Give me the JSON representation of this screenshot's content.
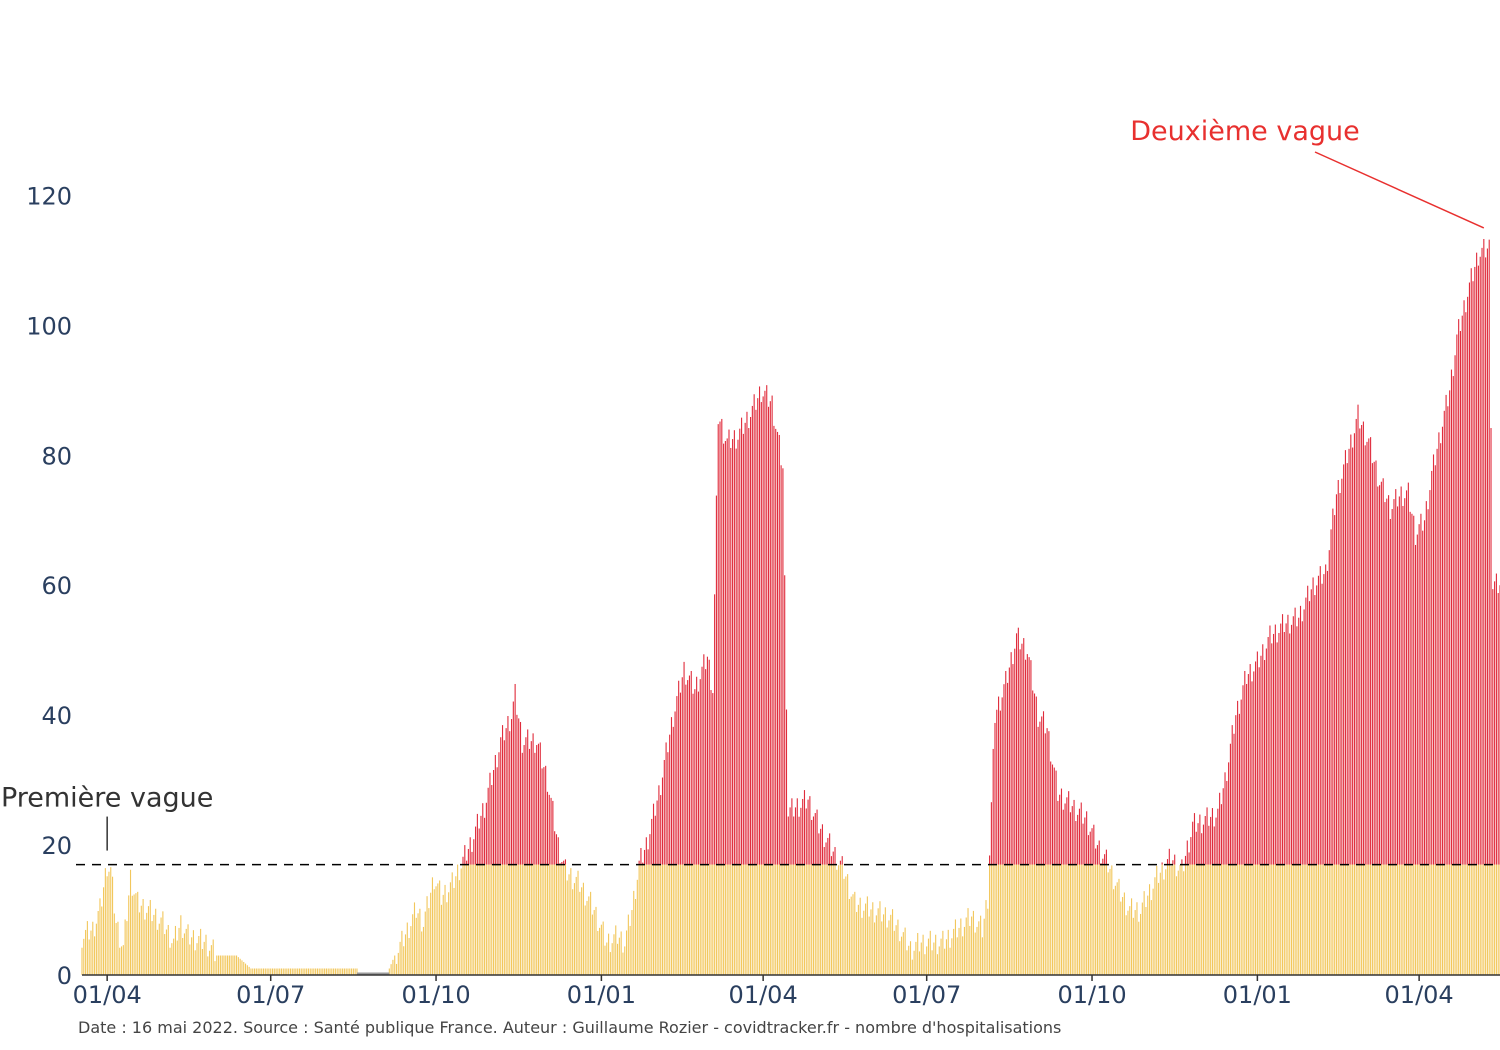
{
  "chart_data": {
    "type": "bar",
    "stacked": true,
    "y_ticks": [
      0,
      20,
      40,
      60,
      80,
      100,
      120
    ],
    "ylim": [
      0,
      127
    ],
    "x_tick_labels": [
      "01/04",
      "01/07",
      "01/10",
      "01/01",
      "01/04",
      "01/07",
      "01/10",
      "01/01",
      "01/04"
    ],
    "x_tick_dates": [
      "2020-04-01",
      "2020-07-01",
      "2020-10-01",
      "2021-01-01",
      "2021-04-01",
      "2021-07-01",
      "2021-10-01",
      "2022-01-01",
      "2022-04-01"
    ],
    "x_range": [
      "2020-03-18",
      "2022-05-16"
    ],
    "threshold": 17,
    "threshold_style": "dashed",
    "colors": {
      "below": "#f2c75c",
      "above": "#e02c3c",
      "threshold": "#000000",
      "axis": "#333333",
      "gap": "#999999"
    },
    "gap_period": [
      "2020-08-18",
      "2020-09-05"
    ],
    "series_keyframes": [
      [
        "2020-03-18",
        6
      ],
      [
        "2020-03-24",
        7
      ],
      [
        "2020-03-28",
        10
      ],
      [
        "2020-04-01",
        17
      ],
      [
        "2020-04-03",
        16
      ],
      [
        "2020-04-06",
        8
      ],
      [
        "2020-04-10",
        4
      ],
      [
        "2020-04-14",
        15
      ],
      [
        "2020-04-18",
        11
      ],
      [
        "2020-04-24",
        10
      ],
      [
        "2020-05-02",
        8
      ],
      [
        "2020-05-08",
        5
      ],
      [
        "2020-05-12",
        8
      ],
      [
        "2020-05-16",
        6
      ],
      [
        "2020-05-26",
        5
      ],
      [
        "2020-06-01",
        3
      ],
      [
        "2020-06-12",
        3
      ],
      [
        "2020-06-16",
        2
      ],
      [
        "2020-06-20",
        1
      ],
      [
        "2020-08-18",
        1
      ],
      [
        "2020-09-05",
        1
      ],
      [
        "2020-09-08",
        3
      ],
      [
        "2020-09-12",
        5
      ],
      [
        "2020-09-20",
        10
      ],
      [
        "2020-09-24",
        8
      ],
      [
        "2020-09-30",
        15
      ],
      [
        "2020-10-04",
        12
      ],
      [
        "2020-10-10",
        14
      ],
      [
        "2020-10-15",
        17
      ],
      [
        "2020-10-20",
        20
      ],
      [
        "2020-10-28",
        26
      ],
      [
        "2020-11-06",
        36
      ],
      [
        "2020-11-12",
        40
      ],
      [
        "2020-11-14",
        43
      ],
      [
        "2020-11-18",
        36
      ],
      [
        "2020-11-26",
        36
      ],
      [
        "2020-12-02",
        30
      ],
      [
        "2020-12-08",
        20
      ],
      [
        "2020-12-12",
        16
      ],
      [
        "2020-12-20",
        14
      ],
      [
        "2020-12-28",
        10
      ],
      [
        "2021-01-04",
        5
      ],
      [
        "2021-01-10",
        6
      ],
      [
        "2021-01-14",
        5
      ],
      [
        "2021-01-18",
        10
      ],
      [
        "2021-01-22",
        17
      ],
      [
        "2021-01-26",
        20
      ],
      [
        "2021-02-02",
        28
      ],
      [
        "2021-02-10",
        40
      ],
      [
        "2021-02-16",
        47
      ],
      [
        "2021-02-22",
        44
      ],
      [
        "2021-03-01",
        49
      ],
      [
        "2021-03-04",
        44
      ],
      [
        "2021-03-07",
        86
      ],
      [
        "2021-03-12",
        82
      ],
      [
        "2021-03-18",
        83
      ],
      [
        "2021-03-26",
        87
      ],
      [
        "2021-03-31",
        90
      ],
      [
        "2021-04-06",
        88
      ],
      [
        "2021-04-12",
        78
      ],
      [
        "2021-04-15",
        25
      ],
      [
        "2021-04-20",
        26
      ],
      [
        "2021-04-26",
        27
      ],
      [
        "2021-05-02",
        23
      ],
      [
        "2021-05-10",
        19
      ],
      [
        "2021-05-16",
        16
      ],
      [
        "2021-05-22",
        11
      ],
      [
        "2021-06-01",
        10
      ],
      [
        "2021-06-10",
        9
      ],
      [
        "2021-06-16",
        7
      ],
      [
        "2021-06-22",
        4
      ],
      [
        "2021-06-28",
        5
      ],
      [
        "2021-07-10",
        5
      ],
      [
        "2021-07-18",
        7
      ],
      [
        "2021-07-26",
        9
      ],
      [
        "2021-08-01",
        7
      ],
      [
        "2021-08-04",
        12
      ],
      [
        "2021-08-08",
        40
      ],
      [
        "2021-08-14",
        45
      ],
      [
        "2021-08-20",
        52
      ],
      [
        "2021-08-26",
        50
      ],
      [
        "2021-09-01",
        40
      ],
      [
        "2021-09-06",
        38
      ],
      [
        "2021-09-12",
        28
      ],
      [
        "2021-09-20",
        26
      ],
      [
        "2021-09-28",
        24
      ],
      [
        "2021-10-04",
        20
      ],
      [
        "2021-10-10",
        17
      ],
      [
        "2021-10-16",
        13
      ],
      [
        "2021-10-22",
        10
      ],
      [
        "2021-10-28",
        10
      ],
      [
        "2021-11-06",
        15
      ],
      [
        "2021-11-14",
        18
      ],
      [
        "2021-11-20",
        16
      ],
      [
        "2021-11-26",
        23
      ],
      [
        "2021-12-04",
        24
      ],
      [
        "2021-12-10",
        25
      ],
      [
        "2021-12-14",
        30
      ],
      [
        "2021-12-20",
        40
      ],
      [
        "2021-12-26",
        46
      ],
      [
        "2022-01-01",
        48
      ],
      [
        "2022-01-08",
        52
      ],
      [
        "2022-01-16",
        54
      ],
      [
        "2022-01-24",
        55
      ],
      [
        "2022-02-01",
        60
      ],
      [
        "2022-02-08",
        62
      ],
      [
        "2022-02-14",
        74
      ],
      [
        "2022-02-20",
        80
      ],
      [
        "2022-02-26",
        86
      ],
      [
        "2022-03-04",
        82
      ],
      [
        "2022-03-10",
        76
      ],
      [
        "2022-03-16",
        72
      ],
      [
        "2022-03-22",
        74
      ],
      [
        "2022-03-26",
        74
      ],
      [
        "2022-03-30",
        68
      ],
      [
        "2022-04-04",
        70
      ],
      [
        "2022-04-08",
        77
      ],
      [
        "2022-04-14",
        85
      ],
      [
        "2022-04-18",
        90
      ],
      [
        "2022-04-22",
        98
      ],
      [
        "2022-04-28",
        105
      ],
      [
        "2022-05-04",
        111
      ],
      [
        "2022-05-10",
        112
      ],
      [
        "2022-05-12",
        60
      ],
      [
        "2022-05-16",
        60
      ]
    ],
    "annotations": [
      {
        "text": "Première vague",
        "date": "2020-04-01",
        "value": 17
      },
      {
        "text": "Deuxième vague",
        "date": "2022-05-07",
        "value": 115
      }
    ]
  },
  "footer": {
    "text": "Date : 16 mai 2022. Source : Santé publique France. Auteur : Guillaume Rozier - covidtracker.fr - nombre d'hospitalisations"
  }
}
